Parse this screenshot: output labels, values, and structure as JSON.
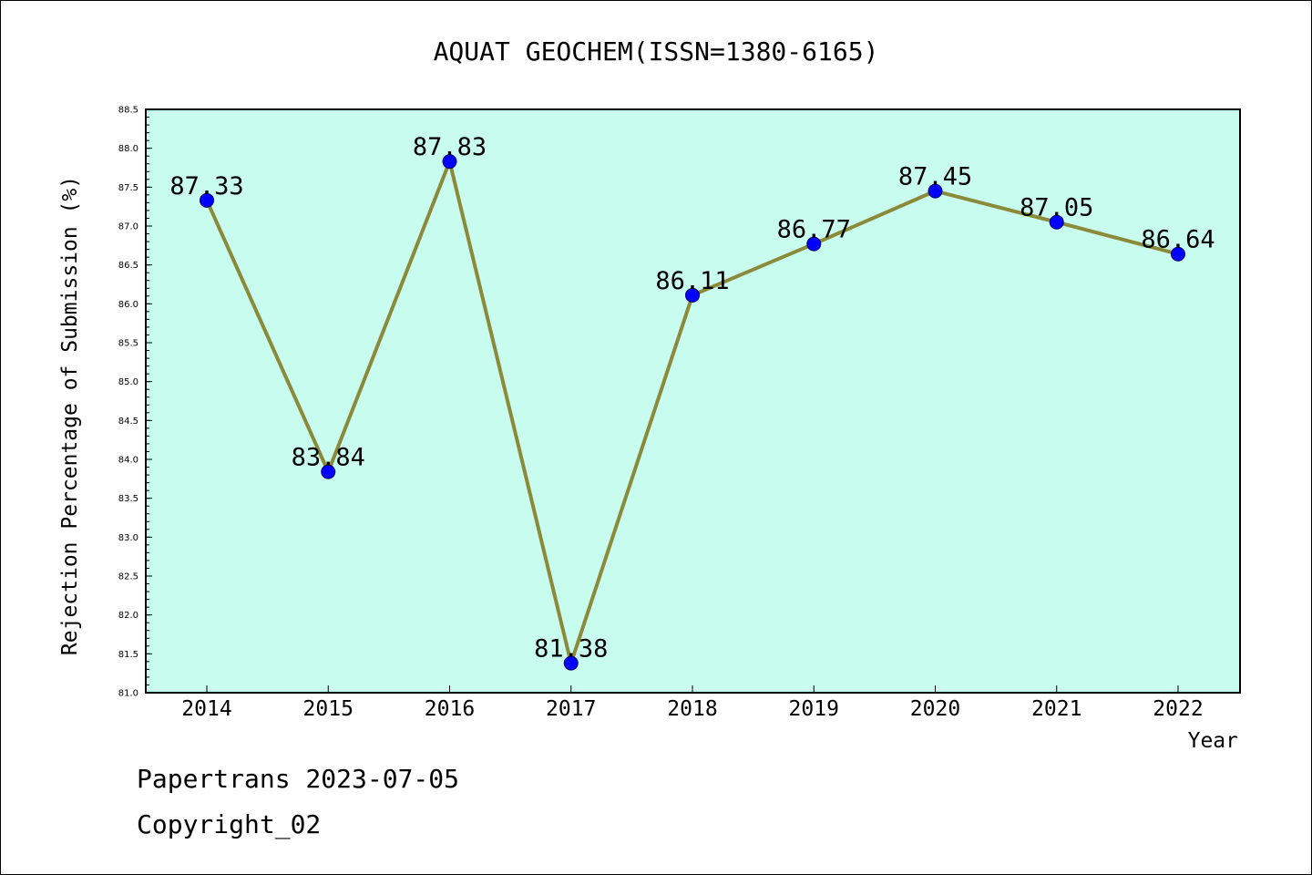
{
  "chart_data": {
    "type": "line",
    "title": "AQUAT GEOCHEM(ISSN=1380-6165)",
    "xlabel": "Year",
    "ylabel": "Rejection Percentage of Submission (%)",
    "categories": [
      "2014",
      "2015",
      "2016",
      "2017",
      "2018",
      "2019",
      "2020",
      "2021",
      "2022"
    ],
    "values": [
      87.33,
      83.84,
      87.83,
      81.38,
      86.11,
      86.77,
      87.45,
      87.05,
      86.64
    ],
    "data_labels": [
      "87.33",
      "83.84",
      "87.83",
      "81.38",
      "86.11",
      "86.77",
      "87.45",
      "87.05",
      "86.64"
    ],
    "ylim": [
      81.0,
      88.5
    ],
    "yticks": [
      "81.0",
      "81.5",
      "82.0",
      "82.5",
      "83.0",
      "83.5",
      "84.0",
      "84.5",
      "85.0",
      "85.5",
      "86.0",
      "86.5",
      "87.0",
      "87.5",
      "88.0",
      "88.5"
    ],
    "grid": false,
    "colors": {
      "plot_background": "#c8fcee",
      "line": "#8b8a3a",
      "marker": "#0000ff"
    }
  },
  "footer": {
    "line1": "Papertrans 2023-07-05",
    "line2": "Copyright_02"
  }
}
